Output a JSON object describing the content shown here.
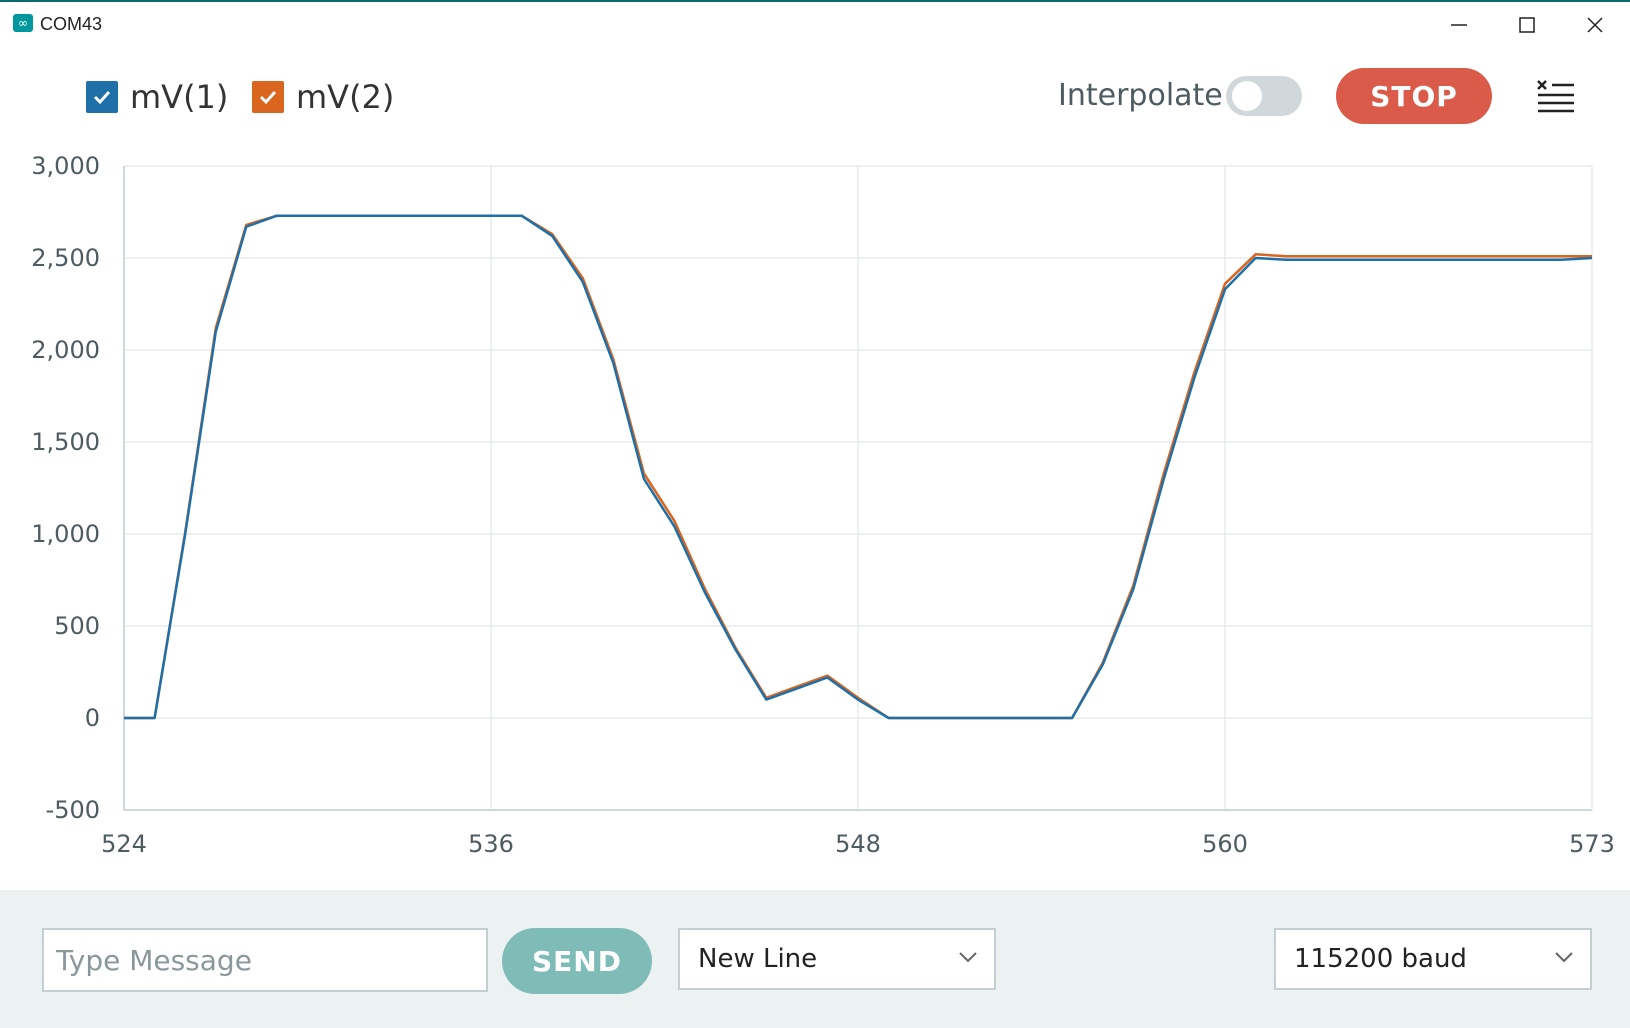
{
  "window": {
    "title": "COM43",
    "app_icon": "arduino-infinity-icon",
    "icon_glyph": "∞"
  },
  "legend": [
    {
      "label": "mV(1)",
      "color": "#1f6fa8",
      "checked": true
    },
    {
      "label": "mV(2)",
      "color": "#d9651f",
      "checked": true
    }
  ],
  "toolbar": {
    "interpolate_label": "Interpolate",
    "interpolate_on": false,
    "stop_label": "STOP",
    "clear_icon": "clear-list-icon"
  },
  "colors": {
    "accent": "#00979d",
    "stop": "#da5b4a",
    "send": "#7fbcb8",
    "series1": "#1f6fa8",
    "series2": "#d9651f"
  },
  "chart_data": {
    "type": "line",
    "x_ticks": [
      "524",
      "536",
      "548",
      "560",
      "573"
    ],
    "y_ticks": [
      "3,000",
      "2,500",
      "2,000",
      "1,500",
      "1,000",
      "500",
      "0",
      "-500"
    ],
    "xlim": [
      524,
      572
    ],
    "ylim": [
      -500,
      3000
    ],
    "grid": true,
    "series": [
      {
        "name": "mV(1)",
        "color": "#1f6fa8",
        "x": [
          524,
          525,
          526,
          527,
          528,
          529,
          530,
          531,
          532,
          533,
          534,
          535,
          536,
          537,
          538,
          539,
          540,
          541,
          542,
          543,
          544,
          545,
          546,
          547,
          548,
          549,
          550,
          551,
          552,
          553,
          554,
          555,
          556,
          557,
          558,
          559,
          560,
          561,
          562,
          563,
          564,
          565,
          566,
          567,
          568,
          569,
          570,
          571,
          572
        ],
        "y": [
          0,
          0,
          1000,
          2100,
          2670,
          2730,
          2730,
          2730,
          2730,
          2730,
          2730,
          2730,
          2730,
          2730,
          2620,
          2370,
          1930,
          1300,
          1040,
          680,
          370,
          100,
          160,
          220,
          100,
          0,
          0,
          0,
          0,
          0,
          0,
          0,
          290,
          700,
          1300,
          1850,
          2330,
          2500,
          2490,
          2490,
          2490,
          2490,
          2490,
          2490,
          2490,
          2490,
          2490,
          2490,
          2500
        ]
      },
      {
        "name": "mV(2)",
        "color": "#d9651f",
        "x": [
          524,
          525,
          526,
          527,
          528,
          529,
          530,
          531,
          532,
          533,
          534,
          535,
          536,
          537,
          538,
          539,
          540,
          541,
          542,
          543,
          544,
          545,
          546,
          547,
          548,
          549,
          550,
          551,
          552,
          553,
          554,
          555,
          556,
          557,
          558,
          559,
          560,
          561,
          562,
          563,
          564,
          565,
          566,
          567,
          568,
          569,
          570,
          571,
          572
        ],
        "y": [
          0,
          0,
          1010,
          2120,
          2680,
          2730,
          2730,
          2730,
          2730,
          2730,
          2730,
          2730,
          2730,
          2730,
          2630,
          2390,
          1950,
          1330,
          1070,
          700,
          380,
          110,
          170,
          230,
          110,
          0,
          0,
          0,
          0,
          0,
          0,
          0,
          300,
          720,
          1330,
          1880,
          2360,
          2520,
          2510,
          2510,
          2510,
          2510,
          2510,
          2510,
          2510,
          2510,
          2510,
          2510,
          2510
        ]
      }
    ]
  },
  "bottom": {
    "message_placeholder": "Type Message",
    "send_label": "SEND",
    "line_ending": "New Line",
    "baud": "115200 baud"
  }
}
